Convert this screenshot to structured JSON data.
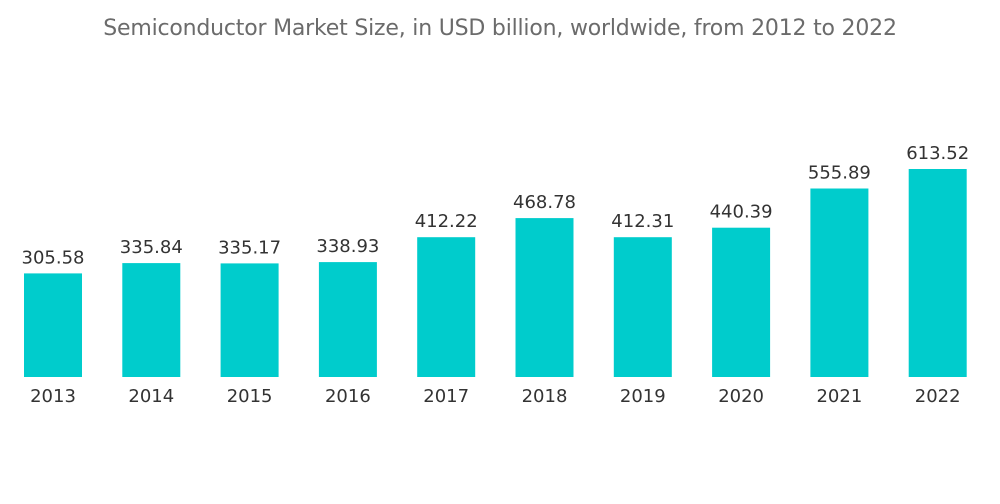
{
  "chart_data": {
    "type": "bar",
    "title": "Semiconductor Market Size, in USD billion, worldwide, from 2012 to 2022",
    "xlabel": "",
    "ylabel": "",
    "categories": [
      "2013",
      "2014",
      "2015",
      "2016",
      "2017",
      "2018",
      "2019",
      "2020",
      "2021",
      "2022"
    ],
    "values": [
      305.58,
      335.84,
      335.17,
      338.93,
      412.22,
      468.78,
      412.31,
      440.39,
      555.89,
      613.52
    ],
    "value_labels": [
      "305.58",
      "335.84",
      "335.17",
      "338.93",
      "412.22",
      "468.78",
      "412.31",
      "440.39",
      "555.89",
      "613.52"
    ],
    "ylim": [
      0,
      613.52
    ],
    "grid": false,
    "legend": "none",
    "bar_color": "#00cccc"
  }
}
